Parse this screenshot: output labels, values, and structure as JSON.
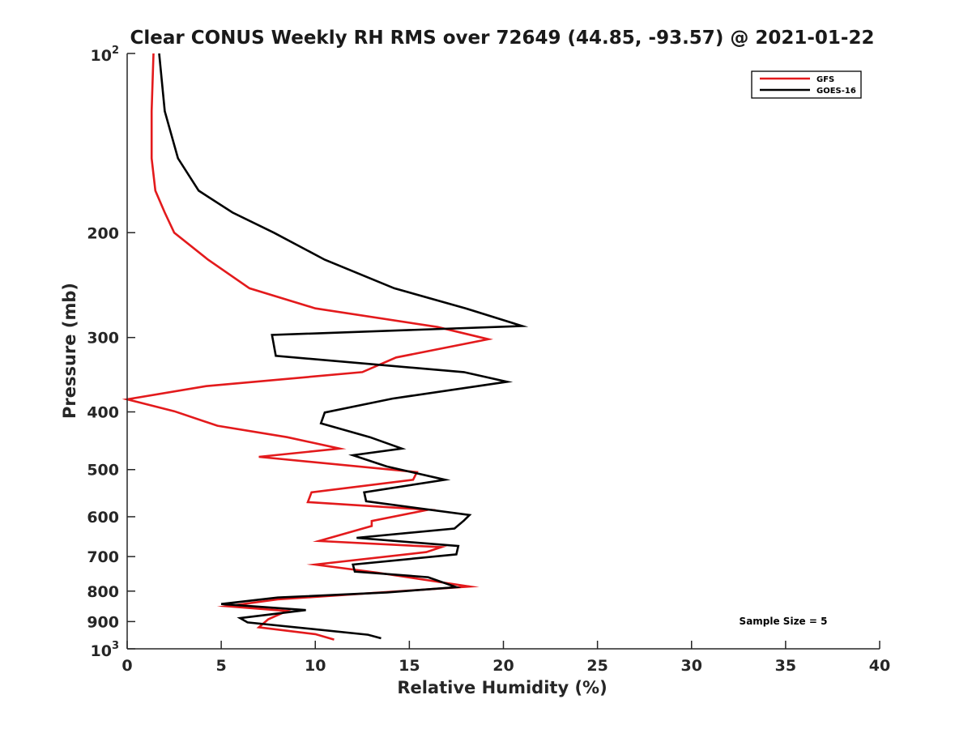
{
  "chart_data": {
    "type": "line",
    "title": "Clear CONUS Weekly RH RMS over 72649 (44.85, -93.57) @ 2021-01-22",
    "xlabel": "Relative Humidity (%)",
    "ylabel": "Pressure (mb)",
    "xlim": [
      0,
      40
    ],
    "ylim": [
      100,
      1000
    ],
    "y_scale": "log",
    "y_reversed": true,
    "x_ticks": [
      "0",
      "5",
      "10",
      "15",
      "20",
      "25",
      "30",
      "35",
      "40"
    ],
    "y_ticks": [
      {
        "value": 100,
        "base": "10",
        "exp": "2"
      },
      {
        "value": 200,
        "label": "200"
      },
      {
        "value": 300,
        "label": "300"
      },
      {
        "value": 400,
        "label": "400"
      },
      {
        "value": 500,
        "label": "500"
      },
      {
        "value": 600,
        "label": "600"
      },
      {
        "value": 700,
        "label": "700"
      },
      {
        "value": 800,
        "label": "800"
      },
      {
        "value": 900,
        "label": "900"
      },
      {
        "value": 1000,
        "base": "10",
        "exp": "3"
      }
    ],
    "grid": false,
    "legend_position": "top-right",
    "series": [
      {
        "name": "GFS",
        "color": "#e31a1c",
        "points": [
          [
            1.4,
            100
          ],
          [
            1.3,
            125
          ],
          [
            1.3,
            150
          ],
          [
            1.5,
            170
          ],
          [
            2.0,
            185
          ],
          [
            2.5,
            200
          ],
          [
            4.3,
            222
          ],
          [
            6.5,
            248
          ],
          [
            10.0,
            268
          ],
          [
            16.5,
            288
          ],
          [
            19.2,
            302
          ],
          [
            14.3,
            324
          ],
          [
            12.5,
            343
          ],
          [
            4.2,
            362
          ],
          [
            0.0,
            381
          ],
          [
            2.5,
            399
          ],
          [
            4.8,
            422
          ],
          [
            8.5,
            441
          ],
          [
            11.3,
            461
          ],
          [
            7.0,
            476
          ],
          [
            15.4,
            505
          ],
          [
            15.2,
            520
          ],
          [
            9.8,
            546
          ],
          [
            9.6,
            567
          ],
          [
            16.0,
            584
          ],
          [
            13.0,
            610
          ],
          [
            13.0,
            622
          ],
          [
            10.2,
            659
          ],
          [
            16.7,
            675
          ],
          [
            15.9,
            688
          ],
          [
            10.0,
            722
          ],
          [
            13.3,
            745
          ],
          [
            18.2,
            786
          ],
          [
            8.0,
            826
          ],
          [
            5.3,
            848
          ],
          [
            8.5,
            864
          ],
          [
            7.5,
            892
          ],
          [
            7.0,
            920
          ],
          [
            10.0,
            945
          ],
          [
            11.0,
            965
          ]
        ]
      },
      {
        "name": "GOES-16",
        "color": "#000000",
        "points": [
          [
            1.7,
            100
          ],
          [
            2.0,
            125
          ],
          [
            2.7,
            150
          ],
          [
            3.8,
            170
          ],
          [
            5.6,
            185
          ],
          [
            7.8,
            200
          ],
          [
            10.5,
            222
          ],
          [
            14.2,
            248
          ],
          [
            18.0,
            268
          ],
          [
            21.0,
            287
          ],
          [
            7.7,
            297
          ],
          [
            7.9,
            322
          ],
          [
            17.9,
            343
          ],
          [
            20.2,
            356
          ],
          [
            14.1,
            380
          ],
          [
            10.5,
            401
          ],
          [
            10.3,
            418
          ],
          [
            12.9,
            441
          ],
          [
            14.6,
            461
          ],
          [
            12.0,
            473
          ],
          [
            13.8,
            494
          ],
          [
            16.9,
            520
          ],
          [
            12.6,
            546
          ],
          [
            12.7,
            565
          ],
          [
            18.2,
            596
          ],
          [
            17.9,
            609
          ],
          [
            17.4,
            628
          ],
          [
            12.2,
            651
          ],
          [
            17.6,
            672
          ],
          [
            17.5,
            694
          ],
          [
            12.0,
            722
          ],
          [
            12.1,
            742
          ],
          [
            16.0,
            758
          ],
          [
            17.5,
            788
          ],
          [
            13.8,
            804
          ],
          [
            8.0,
            820
          ],
          [
            5.0,
            841
          ],
          [
            9.5,
            861
          ],
          [
            6.0,
            888
          ],
          [
            6.4,
            903
          ],
          [
            12.8,
            947
          ],
          [
            13.5,
            960
          ]
        ]
      }
    ],
    "annotation": "Sample Size = 5"
  }
}
